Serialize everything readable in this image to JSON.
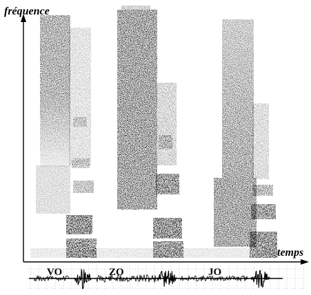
{
  "axes": {
    "y_title": "fréquence",
    "x_title": "temps"
  },
  "syllables": [
    {
      "label": "VO",
      "consonant_intensity": 0.45
    },
    {
      "label": "ZO",
      "consonant_intensity": 0.95
    },
    {
      "label": "JO",
      "consonant_intensity": 0.55
    }
  ],
  "colors": {
    "ink": "#000000",
    "background": "#ffffff",
    "grid": "#9a9a9a"
  }
}
